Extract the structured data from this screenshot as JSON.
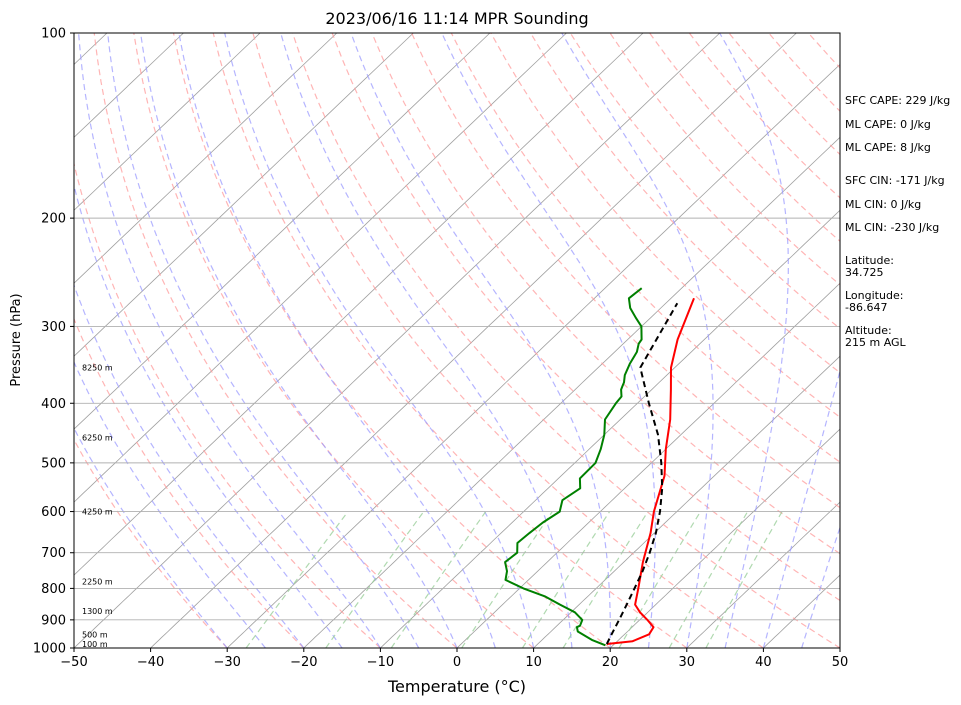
{
  "chart_data": {
    "type": "line",
    "title": "2023/06/16 11:14 MPR Sounding",
    "xlabel": "Temperature (°C)",
    "ylabel": "Pressure (hPa)",
    "xlim": [
      -50,
      50
    ],
    "ylim": [
      1000,
      100
    ],
    "y_scale": "log",
    "x_ticks": [
      "−50",
      "−40",
      "−30",
      "−20",
      "−10",
      "0",
      "10",
      "20",
      "30",
      "40",
      "50"
    ],
    "y_ticks": [
      "100",
      "200",
      "300",
      "400",
      "500",
      "600",
      "700",
      "800",
      "900",
      "1000"
    ],
    "grid": "horizontal pressure lines",
    "background_lines": [
      "skewed isotherms",
      "dry adiabats",
      "moist adiabats",
      "mixing ratio lines"
    ],
    "height_labels": [
      "8250 m",
      "6250 m",
      "4250 m",
      "2250 m",
      "1300 m",
      "500 m",
      "100 m"
    ],
    "series": [
      {
        "color": "#ff0000",
        "x": [
          19.0,
          22.0,
          23.2,
          22.8,
          21.0,
          19.0,
          17.3,
          15.5,
          12.5,
          9.5,
          7.0,
          3.5,
          0.0,
          -3.5,
          -7.5,
          -10.5,
          -13.5,
          -17.0
        ],
        "y": [
          985,
          975,
          950,
          925,
          900,
          875,
          850,
          800,
          725,
          650,
          600,
          525,
          475,
          425,
          380,
          350,
          315,
          270
        ]
      },
      {
        "color": "#008000",
        "x": [
          19.0,
          16.5,
          13.5,
          12.8,
          13.0,
          12.5,
          10.5,
          7.5,
          4.5,
          0.5,
          -3.0,
          -4.0,
          -5.5,
          -5.2,
          -6.5,
          -6.3,
          -6.0,
          -5.3,
          -6.5,
          -5.8,
          -7.2,
          -7.3,
          -8.5,
          -10.0,
          -12.0,
          -12.8,
          -13.0,
          -14.0,
          -14.3,
          -14.6,
          -15.5,
          -16.4,
          -17.1,
          -18.0,
          -18.2,
          -20.0,
          -22.0,
          -24.0,
          -25.5,
          -25.2
        ],
        "y": [
          990,
          970,
          940,
          925,
          920,
          900,
          875,
          850,
          825,
          800,
          775,
          750,
          725,
          700,
          675,
          650,
          625,
          600,
          575,
          550,
          530,
          500,
          475,
          450,
          425,
          400,
          390,
          380,
          375,
          370,
          360,
          345,
          330,
          320,
          315,
          300,
          290,
          280,
          270,
          260
        ]
      },
      {
        "color": "#000000",
        "dashed": true,
        "x": [
          19.0,
          18.3,
          17.3,
          16.2,
          15.0,
          13.7,
          12.1,
          10.2,
          7.8,
          4.9,
          1.3,
          -3.0,
          -8.5,
          -14.5,
          -18.5
        ],
        "y": [
          985,
          950,
          900,
          850,
          800,
          750,
          700,
          650,
          600,
          550,
          500,
          450,
          400,
          350,
          275
        ]
      }
    ]
  },
  "side_panel": {
    "sfc_cape": "SFC CAPE: 229 J/kg",
    "ml_cape_1": "ML CAPE: 0 J/kg",
    "ml_cape_2": "ML CAPE: 8 J/kg",
    "sfc_cin": "SFC CIN: -171 J/kg",
    "ml_cin_1": "ML CIN: 0 J/kg",
    "ml_cin_2": "ML CIN: -230 J/kg",
    "latitude_label": "Latitude:",
    "latitude_value": "34.725",
    "longitude_label": "Longitude:",
    "longitude_value": "-86.647",
    "altitude_label": "Altitude:",
    "altitude_value": "215 m AGL"
  },
  "colors": {
    "isotherm": "#a0a0a0",
    "dry_adiabat": "#ff9c9c",
    "moist_adiabat": "#9c9cff",
    "mixing_ratio": "#9ccf9c",
    "temperature": "#ff0000",
    "dewpoint": "#008000",
    "parcel": "#000000"
  }
}
